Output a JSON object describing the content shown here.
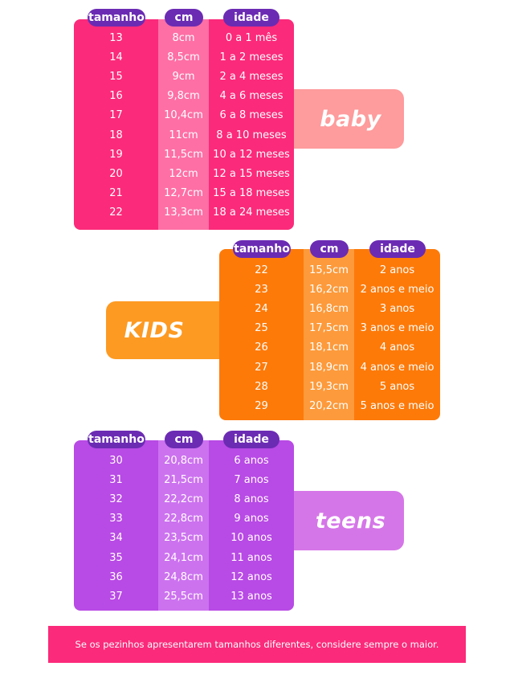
{
  "headers": {
    "size": "tamanho",
    "cm": "cm",
    "age": "idade"
  },
  "colors": {
    "baby_panel": "#fb2a7a",
    "baby_mid": "#fe6fa5",
    "baby_badge": "#fe9b9c",
    "kids_panel": "#fd7a09",
    "kids_mid": "#fd9a3b",
    "kids_badge": "#fd9a22",
    "teens_panel": "#b84ae5",
    "teens_mid": "#cc72ef",
    "teens_badge": "#d576e8",
    "header_pill": "#6b2bb3",
    "footer": "#fb2a7a"
  },
  "baby": {
    "badge": "baby",
    "rows": [
      {
        "size": "13",
        "cm": "8cm",
        "age": "0 a 1 mês"
      },
      {
        "size": "14",
        "cm": "8,5cm",
        "age": "1 a 2 meses"
      },
      {
        "size": "15",
        "cm": "9cm",
        "age": "2 a 4 meses"
      },
      {
        "size": "16",
        "cm": "9,8cm",
        "age": "4 a 6 meses"
      },
      {
        "size": "17",
        "cm": "10,4cm",
        "age": "6 a 8 meses"
      },
      {
        "size": "18",
        "cm": "11cm",
        "age": "8 a 10 meses"
      },
      {
        "size": "19",
        "cm": "11,5cm",
        "age": "10 a 12 meses"
      },
      {
        "size": "20",
        "cm": "12cm",
        "age": "12 a 15 meses"
      },
      {
        "size": "21",
        "cm": "12,7cm",
        "age": "15 a 18 meses"
      },
      {
        "size": "22",
        "cm": "13,3cm",
        "age": "18 a 24 meses"
      }
    ]
  },
  "kids": {
    "badge": "KIDS",
    "rows": [
      {
        "size": "22",
        "cm": "15,5cm",
        "age": "2 anos"
      },
      {
        "size": "23",
        "cm": "16,2cm",
        "age": "2 anos e meio"
      },
      {
        "size": "24",
        "cm": "16,8cm",
        "age": "3 anos"
      },
      {
        "size": "25",
        "cm": "17,5cm",
        "age": "3 anos e meio"
      },
      {
        "size": "26",
        "cm": "18,1cm",
        "age": "4 anos"
      },
      {
        "size": "27",
        "cm": "18,9cm",
        "age": "4 anos e meio"
      },
      {
        "size": "28",
        "cm": "19,3cm",
        "age": "5 anos"
      },
      {
        "size": "29",
        "cm": "20,2cm",
        "age": "5 anos e meio"
      }
    ]
  },
  "teens": {
    "badge": "teens",
    "rows": [
      {
        "size": "30",
        "cm": "20,8cm",
        "age": "6 anos"
      },
      {
        "size": "31",
        "cm": "21,5cm",
        "age": "7 anos"
      },
      {
        "size": "32",
        "cm": "22,2cm",
        "age": "8 anos"
      },
      {
        "size": "33",
        "cm": "22,8cm",
        "age": "9 anos"
      },
      {
        "size": "34",
        "cm": "23,5cm",
        "age": "10 anos"
      },
      {
        "size": "35",
        "cm": "24,1cm",
        "age": "11 anos"
      },
      {
        "size": "36",
        "cm": "24,8cm",
        "age": "12 anos"
      },
      {
        "size": "37",
        "cm": "25,5cm",
        "age": "13 anos"
      }
    ]
  },
  "footer": {
    "text": "Se os pezinhos apresentarem tamanhos diferentes, considere sempre o maior."
  }
}
